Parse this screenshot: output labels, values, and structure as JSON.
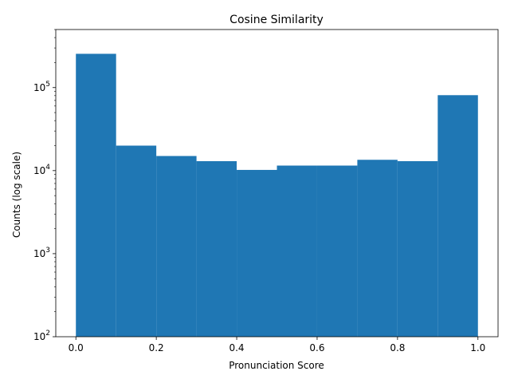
{
  "chart_data": {
    "type": "bar",
    "subtype": "histogram",
    "title": "Cosine Similarity",
    "xlabel": "Pronunciation Score",
    "ylabel": "Counts (log scale)",
    "yscale": "log",
    "xlim": [
      -0.05,
      1.05
    ],
    "ylim": [
      100,
      500000
    ],
    "grid": false,
    "bar_color": "#1f77b4",
    "bin_edges": [
      0.0,
      0.1,
      0.2,
      0.3,
      0.4,
      0.5,
      0.6,
      0.7,
      0.8,
      0.9,
      1.0
    ],
    "values": [
      255000,
      20000,
      15000,
      13000,
      10200,
      11500,
      11500,
      13500,
      13000,
      81000
    ],
    "xticks": [
      {
        "value": 0.0,
        "label": "0.0"
      },
      {
        "value": 0.2,
        "label": "0.2"
      },
      {
        "value": 0.4,
        "label": "0.4"
      },
      {
        "value": 0.6,
        "label": "0.6"
      },
      {
        "value": 0.8,
        "label": "0.8"
      },
      {
        "value": 1.0,
        "label": "1.0"
      }
    ],
    "yticks": [
      {
        "value": 100,
        "base": "10",
        "exp": "2"
      },
      {
        "value": 1000,
        "base": "10",
        "exp": "3"
      },
      {
        "value": 10000,
        "base": "10",
        "exp": "4"
      },
      {
        "value": 100000,
        "base": "10",
        "exp": "5"
      }
    ]
  }
}
